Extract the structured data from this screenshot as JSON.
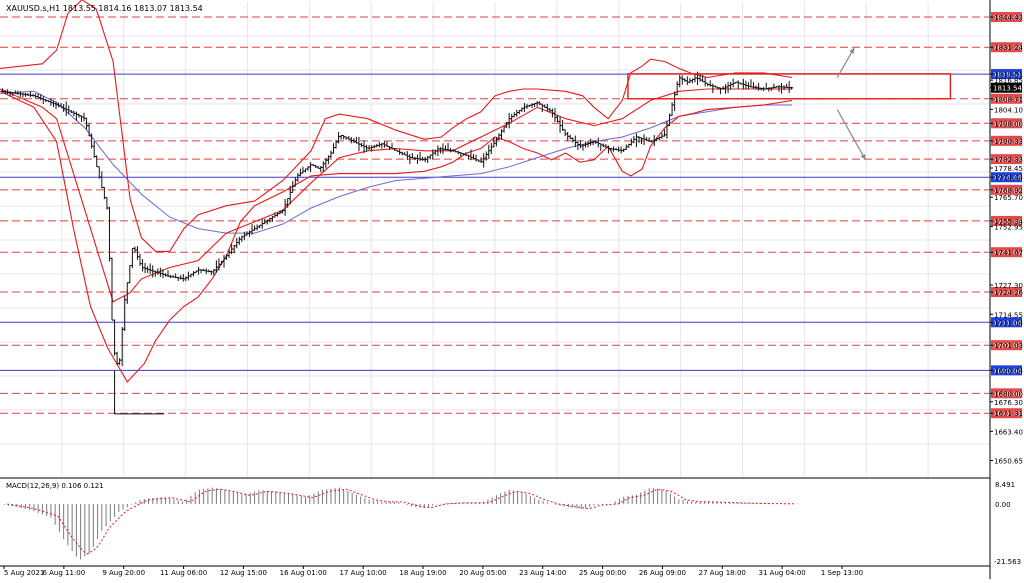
{
  "header": {
    "symbol_line": "XAUUSD.s,H1  1813.55 1814.16 1813.07 1813.54"
  },
  "macd": {
    "label": "MACD(12,26,9) 0.106 0.121",
    "scale_top": "8.491",
    "scale_mid": "0.00",
    "scale_bottom": "-21.563"
  },
  "colors": {
    "background": "#ffffff",
    "grid": "#e6e6ee",
    "candle": "#111111",
    "bollinger": "#e41b1b",
    "ma": "#6b6bd6",
    "level_red": "#e04040",
    "level_blue": "#3a3ad0",
    "label_red_bg": "#e24a4a",
    "label_blue_bg": "#1f3fd8",
    "label_black_bg": "#000000",
    "arrow": "#8a8a8a"
  },
  "chart_data": {
    "type": "candlestick",
    "symbol": "XAUUSD.s",
    "timeframe": "H1",
    "ohlc_last": {
      "open": 1813.55,
      "high": 1814.16,
      "low": 1813.07,
      "close": 1813.54
    },
    "ylim": [
      1643,
      1851
    ],
    "price_ticks": [
      "1844.43",
      "1831.24",
      "1819.51",
      "1816.85",
      "1813.54",
      "1808.71",
      "1804.10",
      "1798.00",
      "1790.33",
      "1778.45",
      "1782.33",
      "1774.44",
      "1768.92",
      "1765.70",
      "1755.34",
      "1752.95",
      "1741.67",
      "1727.30",
      "1724.26",
      "1714.55",
      "1711.04",
      "1701.03",
      "1690.04",
      "1680.00",
      "1676.30",
      "1671.31",
      "1663.40",
      "1650.65"
    ],
    "x_labels": [
      "5 Aug 2021",
      "6 Aug 11:00",
      "9 Aug 20:00",
      "11 Aug 06:00",
      "12 Aug 15:00",
      "16 Aug 01:00",
      "17 Aug 10:00",
      "18 Aug 19:00",
      "20 Aug 05:00",
      "23 Aug 14:00",
      "25 Aug 00:00",
      "26 Aug 09:00",
      "27 Aug 18:00",
      "31 Aug 04:00",
      "1 Sep 13:00"
    ],
    "levels": [
      {
        "price": 1844.43,
        "label": "1844.43",
        "kind": "red"
      },
      {
        "price": 1831.24,
        "label": "1831.24",
        "kind": "red"
      },
      {
        "price": 1819.51,
        "label": "1819.51",
        "kind": "blue"
      },
      {
        "price": 1808.71,
        "label": "1808.71",
        "kind": "red"
      },
      {
        "price": 1798.0,
        "label": "1798.00",
        "kind": "red"
      },
      {
        "price": 1790.33,
        "label": "1790.33",
        "kind": "red"
      },
      {
        "price": 1782.33,
        "label": "1782.33",
        "kind": "red"
      },
      {
        "price": 1774.44,
        "label": "1774.44",
        "kind": "blue"
      },
      {
        "price": 1768.92,
        "label": "1768.92",
        "kind": "red"
      },
      {
        "price": 1755.34,
        "label": "1755.34",
        "kind": "red"
      },
      {
        "price": 1741.67,
        "label": "1741.67",
        "kind": "red"
      },
      {
        "price": 1724.26,
        "label": "1724.26",
        "kind": "red"
      },
      {
        "price": 1711.04,
        "label": "1711.04",
        "kind": "blue"
      },
      {
        "price": 1701.03,
        "label": "1701.03",
        "kind": "red"
      },
      {
        "price": 1690.04,
        "label": "1690.04",
        "kind": "blue"
      },
      {
        "price": 1680.0,
        "label": "1680.00",
        "kind": "red"
      },
      {
        "price": 1671.31,
        "label": "1671.31",
        "kind": "red"
      }
    ],
    "current_price": {
      "price": 1813.54,
      "label": "1813.54"
    },
    "close_path": [
      [
        0,
        1812
      ],
      [
        1.2,
        1810
      ],
      [
        2,
        1806
      ],
      [
        3,
        1800
      ],
      [
        3.5,
        1775
      ],
      [
        3.8,
        1760
      ],
      [
        4,
        1700
      ],
      [
        4.2,
        1690
      ],
      [
        4.4,
        1720
      ],
      [
        4.7,
        1745
      ],
      [
        5,
        1735
      ],
      [
        5.5,
        1733
      ],
      [
        6,
        1731
      ],
      [
        6.5,
        1730
      ],
      [
        7,
        1734
      ],
      [
        7.5,
        1733
      ],
      [
        8,
        1740
      ],
      [
        8.5,
        1748
      ],
      [
        9,
        1752
      ],
      [
        9.5,
        1756
      ],
      [
        10,
        1760
      ],
      [
        10.5,
        1775
      ],
      [
        11,
        1780
      ],
      [
        11.3,
        1778
      ],
      [
        11.7,
        1785
      ],
      [
        12,
        1793
      ],
      [
        12.5,
        1790
      ],
      [
        13,
        1787
      ],
      [
        13.5,
        1789
      ],
      [
        14,
        1786
      ],
      [
        14.5,
        1783
      ],
      [
        15,
        1782
      ],
      [
        15.5,
        1787
      ],
      [
        16,
        1786
      ],
      [
        16.5,
        1784
      ],
      [
        17,
        1781
      ],
      [
        17.5,
        1790
      ],
      [
        18,
        1800
      ],
      [
        18.5,
        1805
      ],
      [
        19,
        1807
      ],
      [
        19.5,
        1803
      ],
      [
        20,
        1793
      ],
      [
        20.5,
        1788
      ],
      [
        21,
        1790
      ],
      [
        21.5,
        1787
      ],
      [
        22,
        1786
      ],
      [
        22.5,
        1792
      ],
      [
        23,
        1790
      ],
      [
        23.5,
        1793
      ],
      [
        24,
        1818
      ],
      [
        24.3,
        1816
      ],
      [
        24.6,
        1818
      ],
      [
        25,
        1815
      ],
      [
        25.5,
        1813
      ],
      [
        26,
        1816
      ],
      [
        26.5,
        1814
      ],
      [
        27,
        1813
      ],
      [
        27.5,
        1814
      ],
      [
        28,
        1813.5
      ]
    ],
    "bollinger_upper": [
      [
        0,
        1822
      ],
      [
        1.5,
        1824
      ],
      [
        2,
        1830
      ],
      [
        2.4,
        1846
      ],
      [
        2.9,
        1852
      ],
      [
        3.4,
        1848
      ],
      [
        4,
        1825
      ],
      [
        4.6,
        1765
      ],
      [
        5,
        1748
      ],
      [
        5.5,
        1742
      ],
      [
        6,
        1742
      ],
      [
        6.5,
        1752
      ],
      [
        7,
        1758
      ],
      [
        8,
        1762
      ],
      [
        9,
        1764
      ],
      [
        10,
        1773
      ],
      [
        11,
        1786
      ],
      [
        11.5,
        1800
      ],
      [
        12,
        1802
      ],
      [
        13,
        1800
      ],
      [
        14,
        1795
      ],
      [
        15,
        1791
      ],
      [
        15.6,
        1792
      ],
      [
        16,
        1796
      ],
      [
        16.5,
        1800
      ],
      [
        17,
        1803
      ],
      [
        17.5,
        1810
      ],
      [
        18,
        1812
      ],
      [
        18.5,
        1813
      ],
      [
        19,
        1813
      ],
      [
        20,
        1812
      ],
      [
        20.6,
        1810
      ],
      [
        21,
        1805
      ],
      [
        21.5,
        1800
      ],
      [
        22,
        1808
      ],
      [
        22.3,
        1820
      ],
      [
        22.7,
        1823
      ],
      [
        23,
        1826
      ],
      [
        23.5,
        1825
      ],
      [
        24,
        1822
      ],
      [
        24.4,
        1820
      ],
      [
        25,
        1818
      ],
      [
        26,
        1820
      ],
      [
        27,
        1820
      ],
      [
        28,
        1818
      ]
    ],
    "bollinger_middle": [
      [
        0,
        1813
      ],
      [
        1.5,
        1805
      ],
      [
        2,
        1800
      ],
      [
        3,
        1760
      ],
      [
        4,
        1720
      ],
      [
        4.6,
        1724
      ],
      [
        5,
        1730
      ],
      [
        6,
        1735
      ],
      [
        7,
        1738
      ],
      [
        8,
        1750
      ],
      [
        9,
        1755
      ],
      [
        10,
        1760
      ],
      [
        11,
        1772
      ],
      [
        12,
        1783
      ],
      [
        13,
        1786
      ],
      [
        14,
        1787
      ],
      [
        15,
        1786
      ],
      [
        16,
        1786
      ],
      [
        17,
        1792
      ],
      [
        18,
        1798
      ],
      [
        19,
        1805
      ],
      [
        20,
        1800
      ],
      [
        21,
        1797
      ],
      [
        22,
        1800
      ],
      [
        23,
        1808
      ],
      [
        24,
        1812
      ],
      [
        25,
        1813
      ],
      [
        26,
        1813
      ],
      [
        27,
        1813
      ],
      [
        28,
        1813
      ]
    ],
    "bollinger_lower": [
      [
        0,
        1812
      ],
      [
        1.2,
        1805
      ],
      [
        2,
        1790
      ],
      [
        2.6,
        1752
      ],
      [
        3.2,
        1718
      ],
      [
        3.8,
        1700
      ],
      [
        4.5,
        1685
      ],
      [
        5.1,
        1693
      ],
      [
        5.5,
        1703
      ],
      [
        6,
        1712
      ],
      [
        6.5,
        1718
      ],
      [
        7,
        1722
      ],
      [
        7.5,
        1730
      ],
      [
        8,
        1740
      ],
      [
        8.5,
        1755
      ],
      [
        9,
        1762
      ],
      [
        10,
        1768
      ],
      [
        11,
        1775
      ],
      [
        12,
        1776
      ],
      [
        13,
        1776
      ],
      [
        14,
        1776
      ],
      [
        15,
        1777
      ],
      [
        15.6,
        1779
      ],
      [
        16,
        1781
      ],
      [
        16.5,
        1785
      ],
      [
        17,
        1787
      ],
      [
        17.5,
        1792
      ],
      [
        18,
        1790
      ],
      [
        18.5,
        1787
      ],
      [
        19,
        1785
      ],
      [
        19.5,
        1782
      ],
      [
        20,
        1785
      ],
      [
        20.5,
        1781
      ],
      [
        21,
        1782
      ],
      [
        21.5,
        1788
      ],
      [
        22,
        1777
      ],
      [
        22.3,
        1775
      ],
      [
        22.7,
        1778
      ],
      [
        23,
        1788
      ],
      [
        23.5,
        1796
      ],
      [
        24,
        1801
      ],
      [
        24.4,
        1802
      ],
      [
        25,
        1804
      ],
      [
        26,
        1805
      ],
      [
        27,
        1806
      ],
      [
        28,
        1808
      ]
    ],
    "moving_average": [
      [
        0,
        1811
      ],
      [
        1.2,
        1812
      ],
      [
        2,
        1807
      ],
      [
        3,
        1796
      ],
      [
        4,
        1780
      ],
      [
        5,
        1767
      ],
      [
        6,
        1757
      ],
      [
        7,
        1752
      ],
      [
        8,
        1750
      ],
      [
        9,
        1750
      ],
      [
        10,
        1754
      ],
      [
        11,
        1761
      ],
      [
        12,
        1766
      ],
      [
        13,
        1770
      ],
      [
        14,
        1773
      ],
      [
        15,
        1774
      ],
      [
        16,
        1775
      ],
      [
        17,
        1776
      ],
      [
        18,
        1779
      ],
      [
        19,
        1783
      ],
      [
        20,
        1787
      ],
      [
        21,
        1790
      ],
      [
        22,
        1792
      ],
      [
        23,
        1796
      ],
      [
        24,
        1801
      ],
      [
        25,
        1803
      ],
      [
        26,
        1805
      ],
      [
        27,
        1806
      ],
      [
        28,
        1806
      ]
    ],
    "range_box": {
      "x_start": 22.2,
      "x_end": 33.6,
      "price_top": 1819.6,
      "price_bottom": 1808.7
    },
    "arrow_up": {
      "from": [
        29.6,
        1818
      ],
      "to": [
        30.2,
        1831
      ]
    },
    "arrow_down": {
      "from": [
        29.6,
        1804
      ],
      "to": [
        30.6,
        1782
      ]
    },
    "macd_hist": [
      [
        0,
        0
      ],
      [
        1,
        -2
      ],
      [
        1.8,
        -5
      ],
      [
        2.3,
        -14
      ],
      [
        2.8,
        -21
      ],
      [
        3.2,
        -18
      ],
      [
        3.6,
        -10
      ],
      [
        4.2,
        -3
      ],
      [
        5,
        2
      ],
      [
        5.8,
        3
      ],
      [
        6.5,
        1
      ],
      [
        7,
        6
      ],
      [
        7.5,
        7
      ],
      [
        8,
        6
      ],
      [
        8.6,
        4
      ],
      [
        9.2,
        6
      ],
      [
        10,
        5
      ],
      [
        10.8,
        3
      ],
      [
        11.4,
        6
      ],
      [
        12,
        7
      ],
      [
        12.6,
        4
      ],
      [
        13,
        2
      ],
      [
        13.5,
        1
      ],
      [
        14,
        1
      ],
      [
        14.6,
        -1
      ],
      [
        15,
        -1.5
      ],
      [
        15.5,
        0
      ],
      [
        16,
        0.5
      ],
      [
        17,
        0.5
      ],
      [
        17.6,
        4
      ],
      [
        18,
        6
      ],
      [
        18.5,
        5
      ],
      [
        19,
        2
      ],
      [
        19.5,
        0
      ],
      [
        20,
        -1
      ],
      [
        20.6,
        -2
      ],
      [
        21,
        -0.5
      ],
      [
        21.6,
        0
      ],
      [
        22,
        3
      ],
      [
        22.5,
        4
      ],
      [
        23,
        7
      ],
      [
        23.5,
        6
      ],
      [
        24,
        2
      ],
      [
        24.5,
        1
      ],
      [
        25,
        1
      ],
      [
        26,
        0.5
      ],
      [
        27,
        0.2
      ],
      [
        28,
        0.1
      ]
    ]
  }
}
